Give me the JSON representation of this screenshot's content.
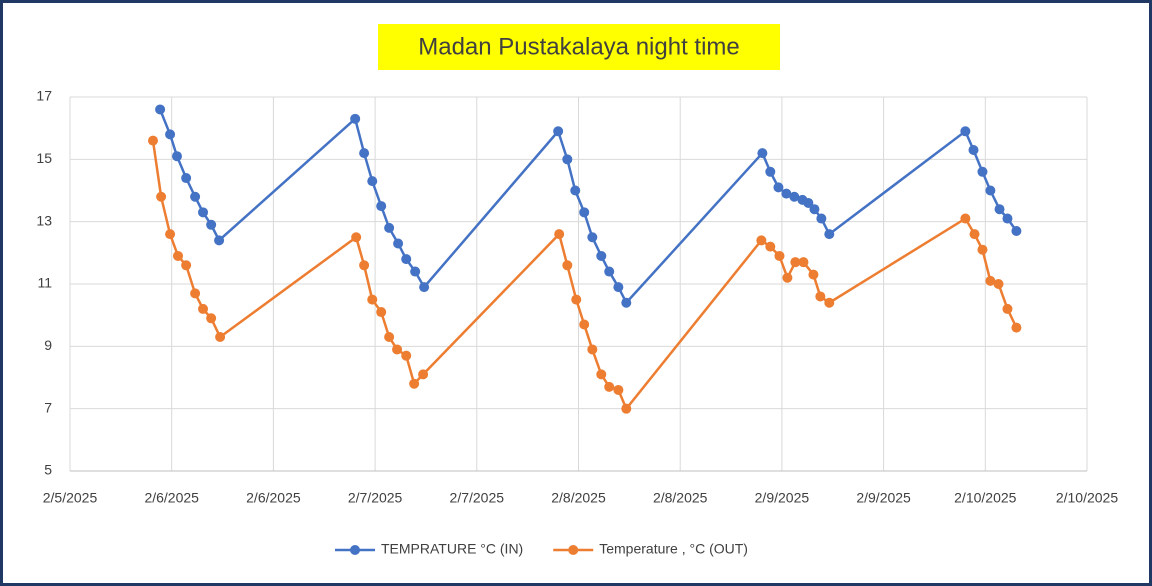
{
  "chart_data": {
    "type": "line",
    "title": "Madan Pustakalaya night time",
    "xlim": [
      45693.5,
      45698.5
    ],
    "xticks": [
      {
        "value": 45693.5,
        "label": "2/5/2025"
      },
      {
        "value": 45694.0,
        "label": "2/6/2025"
      },
      {
        "value": 45694.5,
        "label": "2/6/2025"
      },
      {
        "value": 45695.0,
        "label": "2/7/2025"
      },
      {
        "value": 45695.5,
        "label": "2/7/2025"
      },
      {
        "value": 45696.0,
        "label": "2/8/2025"
      },
      {
        "value": 45696.5,
        "label": "2/8/2025"
      },
      {
        "value": 45697.0,
        "label": "2/9/2025"
      },
      {
        "value": 45697.5,
        "label": "2/9/2025"
      },
      {
        "value": 45698.0,
        "label": "2/10/2025"
      },
      {
        "value": 45698.5,
        "label": "2/10/2025"
      }
    ],
    "ylim": [
      5,
      17
    ],
    "yticks": [
      5,
      7,
      9,
      11,
      13,
      15,
      17
    ],
    "grid": true,
    "legend": "bottom",
    "series": [
      {
        "name": "TEMPRATURE °C (IN)",
        "color": "#4472c4",
        "x": [
          45693.943,
          45693.992,
          45694.026,
          45694.071,
          45694.115,
          45694.154,
          45694.194,
          45694.233,
          45694.902,
          45694.946,
          45694.986,
          45695.03,
          45695.069,
          45695.113,
          45695.153,
          45695.197,
          45695.241,
          45695.9,
          45695.945,
          45695.984,
          45696.028,
          45696.068,
          45696.112,
          45696.151,
          45696.196,
          45696.235,
          45696.904,
          45696.943,
          45696.983,
          45697.022,
          45697.061,
          45697.101,
          45697.13,
          45697.16,
          45697.194,
          45697.233,
          45697.902,
          45697.942,
          45697.986,
          45698.025,
          45698.07,
          45698.109,
          45698.153
        ],
        "values": [
          16.6,
          15.8,
          15.1,
          14.4,
          13.8,
          13.3,
          12.9,
          12.4,
          16.3,
          15.2,
          14.3,
          13.5,
          12.8,
          12.3,
          11.8,
          11.4,
          10.9,
          15.9,
          15.0,
          14.0,
          13.3,
          12.5,
          11.9,
          11.4,
          10.9,
          10.4,
          15.2,
          14.6,
          14.1,
          13.9,
          13.8,
          13.7,
          13.6,
          13.4,
          13.1,
          12.6,
          15.9,
          15.3,
          14.6,
          14.0,
          13.4,
          13.1,
          12.7
        ]
      },
      {
        "name": "Temperature , °C (OUT)",
        "color": "#ed7d31",
        "x": [
          45693.908,
          45693.948,
          45693.992,
          45694.031,
          45694.071,
          45694.115,
          45694.154,
          45694.194,
          45694.238,
          45694.907,
          45694.946,
          45694.986,
          45695.03,
          45695.069,
          45695.108,
          45695.153,
          45695.192,
          45695.236,
          45695.905,
          45695.945,
          45695.989,
          45696.028,
          45696.068,
          45696.112,
          45696.151,
          45696.196,
          45696.235,
          45696.899,
          45696.943,
          45696.988,
          45697.027,
          45697.066,
          45697.106,
          45697.155,
          45697.189,
          45697.233,
          45697.902,
          45697.947,
          45697.986,
          45698.025,
          45698.065,
          45698.109,
          45698.153
        ],
        "values": [
          15.6,
          13.8,
          12.6,
          11.9,
          11.6,
          10.7,
          10.2,
          9.9,
          9.3,
          12.5,
          11.6,
          10.5,
          10.1,
          9.3,
          8.9,
          8.7,
          7.8,
          8.1,
          12.6,
          11.6,
          10.5,
          9.7,
          8.9,
          8.1,
          7.7,
          7.6,
          7.0,
          12.4,
          12.2,
          11.9,
          11.2,
          11.7,
          11.7,
          11.3,
          10.6,
          10.4,
          13.1,
          12.6,
          12.1,
          11.1,
          11.0,
          10.2,
          9.6
        ]
      }
    ]
  }
}
